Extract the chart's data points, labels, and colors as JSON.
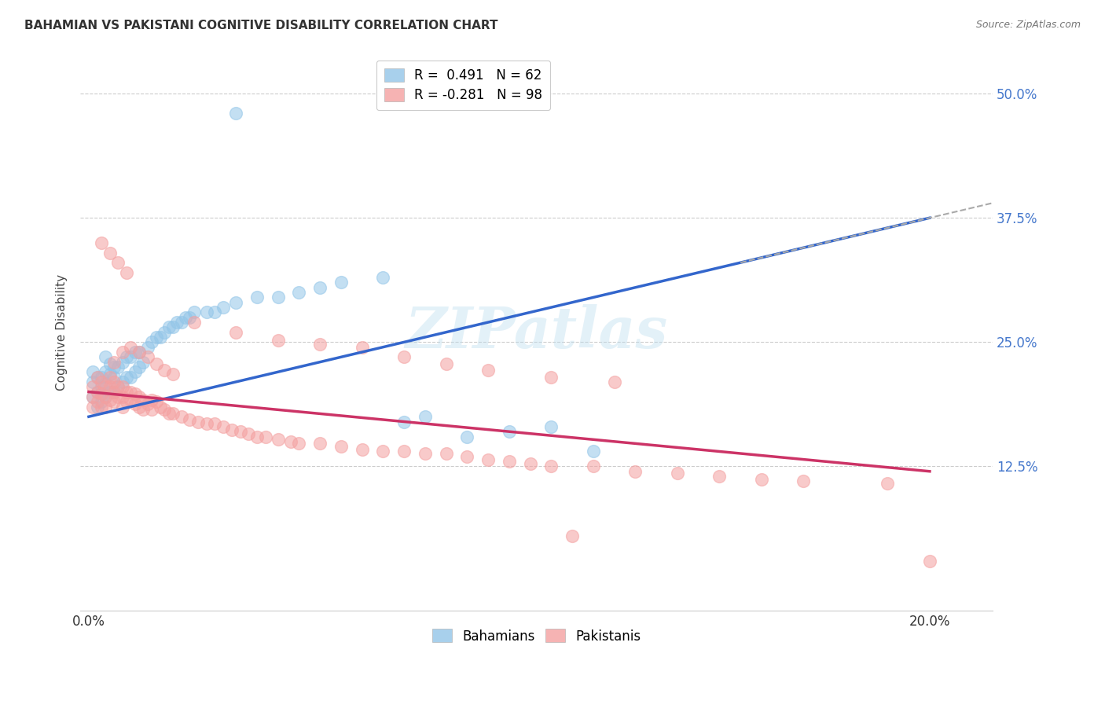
{
  "title": "BAHAMIAN VS PAKISTANI COGNITIVE DISABILITY CORRELATION CHART",
  "source": "Source: ZipAtlas.com",
  "xlabel_bahamians": "Bahamians",
  "xlabel_pakistanis": "Pakistanis",
  "ylabel": "Cognitive Disability",
  "xlim": [
    -0.002,
    0.215
  ],
  "ylim": [
    -0.02,
    0.54
  ],
  "xtick_positions": [
    0.0,
    0.05,
    0.1,
    0.15,
    0.2
  ],
  "xtick_labels": [
    "0.0%",
    "",
    "",
    "",
    "20.0%"
  ],
  "ytick_positions": [
    0.125,
    0.25,
    0.375,
    0.5
  ],
  "ytick_labels": [
    "12.5%",
    "25.0%",
    "37.5%",
    "50.0%"
  ],
  "bahamian_color": "#92C5E8",
  "pakistani_color": "#F4A0A0",
  "blue_line_color": "#3366CC",
  "pink_line_color": "#CC3366",
  "dashed_line_color": "#AAAAAA",
  "watermark_text": "ZIPatlas",
  "legend_label_bah": "R =  0.491   N = 62",
  "legend_label_pak": "R = -0.281   N = 98",
  "bah_line_x0": 0.0,
  "bah_line_y0": 0.175,
  "bah_line_x1": 0.2,
  "bah_line_y1": 0.375,
  "pak_line_x0": 0.0,
  "pak_line_y0": 0.2,
  "pak_line_x1": 0.2,
  "pak_line_y1": 0.12,
  "dash_line_x0": 0.155,
  "dash_line_x1": 0.215,
  "bahamian_x": [
    0.001,
    0.001,
    0.001,
    0.002,
    0.002,
    0.002,
    0.003,
    0.003,
    0.003,
    0.003,
    0.004,
    0.004,
    0.004,
    0.004,
    0.005,
    0.005,
    0.005,
    0.006,
    0.006,
    0.006,
    0.007,
    0.007,
    0.008,
    0.008,
    0.009,
    0.009,
    0.01,
    0.01,
    0.011,
    0.011,
    0.012,
    0.012,
    0.013,
    0.014,
    0.015,
    0.016,
    0.017,
    0.018,
    0.019,
    0.02,
    0.021,
    0.022,
    0.023,
    0.024,
    0.025,
    0.028,
    0.03,
    0.032,
    0.035,
    0.04,
    0.045,
    0.05,
    0.055,
    0.06,
    0.07,
    0.075,
    0.08,
    0.09,
    0.1,
    0.11,
    0.12,
    0.035
  ],
  "bahamian_y": [
    0.195,
    0.21,
    0.22,
    0.185,
    0.2,
    0.215,
    0.19,
    0.205,
    0.198,
    0.215,
    0.195,
    0.208,
    0.22,
    0.235,
    0.2,
    0.218,
    0.228,
    0.2,
    0.215,
    0.225,
    0.205,
    0.225,
    0.21,
    0.23,
    0.215,
    0.235,
    0.215,
    0.235,
    0.22,
    0.24,
    0.225,
    0.24,
    0.23,
    0.245,
    0.25,
    0.255,
    0.255,
    0.26,
    0.265,
    0.265,
    0.27,
    0.27,
    0.275,
    0.275,
    0.28,
    0.28,
    0.28,
    0.285,
    0.29,
    0.295,
    0.295,
    0.3,
    0.305,
    0.31,
    0.315,
    0.17,
    0.175,
    0.155,
    0.16,
    0.165,
    0.14,
    0.48
  ],
  "pakistani_x": [
    0.001,
    0.001,
    0.001,
    0.002,
    0.002,
    0.002,
    0.003,
    0.003,
    0.003,
    0.004,
    0.004,
    0.004,
    0.005,
    0.005,
    0.005,
    0.006,
    0.006,
    0.006,
    0.007,
    0.007,
    0.008,
    0.008,
    0.008,
    0.009,
    0.009,
    0.01,
    0.01,
    0.011,
    0.011,
    0.012,
    0.012,
    0.013,
    0.013,
    0.014,
    0.015,
    0.015,
    0.016,
    0.017,
    0.018,
    0.019,
    0.02,
    0.022,
    0.024,
    0.026,
    0.028,
    0.03,
    0.032,
    0.034,
    0.036,
    0.038,
    0.04,
    0.042,
    0.045,
    0.048,
    0.05,
    0.055,
    0.06,
    0.065,
    0.07,
    0.075,
    0.08,
    0.085,
    0.09,
    0.095,
    0.1,
    0.105,
    0.11,
    0.12,
    0.13,
    0.14,
    0.15,
    0.16,
    0.17,
    0.025,
    0.035,
    0.045,
    0.055,
    0.065,
    0.075,
    0.085,
    0.095,
    0.11,
    0.125,
    0.006,
    0.008,
    0.01,
    0.012,
    0.014,
    0.016,
    0.018,
    0.02,
    0.003,
    0.005,
    0.007,
    0.009,
    0.115,
    0.19,
    0.2
  ],
  "pakistani_y": [
    0.205,
    0.195,
    0.185,
    0.215,
    0.2,
    0.19,
    0.21,
    0.198,
    0.185,
    0.205,
    0.195,
    0.185,
    0.215,
    0.205,
    0.192,
    0.21,
    0.2,
    0.19,
    0.205,
    0.195,
    0.205,
    0.195,
    0.185,
    0.2,
    0.19,
    0.2,
    0.192,
    0.198,
    0.188,
    0.195,
    0.185,
    0.192,
    0.182,
    0.188,
    0.192,
    0.182,
    0.19,
    0.185,
    0.182,
    0.178,
    0.178,
    0.175,
    0.172,
    0.17,
    0.168,
    0.168,
    0.165,
    0.162,
    0.16,
    0.158,
    0.155,
    0.155,
    0.152,
    0.15,
    0.148,
    0.148,
    0.145,
    0.142,
    0.14,
    0.14,
    0.138,
    0.138,
    0.135,
    0.132,
    0.13,
    0.128,
    0.125,
    0.125,
    0.12,
    0.118,
    0.115,
    0.112,
    0.11,
    0.27,
    0.26,
    0.252,
    0.248,
    0.245,
    0.235,
    0.228,
    0.222,
    0.215,
    0.21,
    0.23,
    0.24,
    0.245,
    0.24,
    0.235,
    0.228,
    0.222,
    0.218,
    0.35,
    0.34,
    0.33,
    0.32,
    0.055,
    0.108,
    0.03
  ]
}
